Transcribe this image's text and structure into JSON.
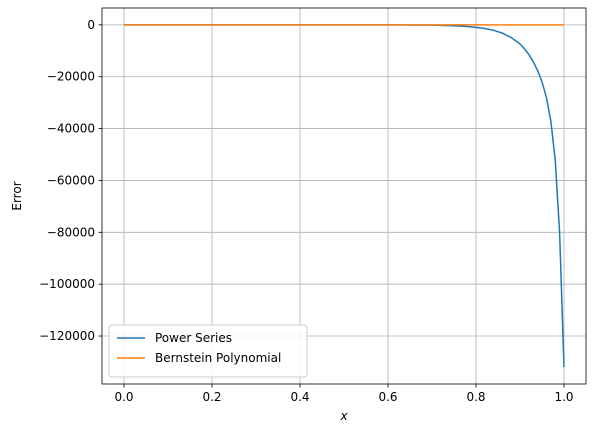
{
  "chart_data": {
    "type": "line",
    "title": "",
    "xlabel": "x",
    "ylabel": "Error",
    "xlim": [
      -0.05,
      1.05
    ],
    "ylim": [
      -138500,
      6500
    ],
    "xticks": [
      0.0,
      0.2,
      0.4,
      0.6,
      0.8,
      1.0
    ],
    "xtick_labels": [
      "0.0",
      "0.2",
      "0.4",
      "0.6",
      "0.8",
      "1.0"
    ],
    "yticks": [
      0,
      -20000,
      -40000,
      -60000,
      -80000,
      -100000,
      -120000
    ],
    "ytick_labels": [
      "0",
      "−20000",
      "−40000",
      "−60000",
      "−80000",
      "−100000",
      "−120000"
    ],
    "grid": true,
    "legend_position": "lower-left",
    "series": [
      {
        "name": "Power Series",
        "color": "#1f77b4",
        "x": [
          0.0,
          0.1,
          0.2,
          0.3,
          0.4,
          0.5,
          0.6,
          0.65,
          0.7,
          0.72,
          0.74,
          0.76,
          0.78,
          0.8,
          0.82,
          0.84,
          0.86,
          0.88,
          0.9,
          0.91,
          0.92,
          0.93,
          0.94,
          0.95,
          0.96,
          0.97,
          0.98,
          0.99,
          1.0
        ],
        "y": [
          0,
          0,
          0,
          0,
          0,
          0,
          -20,
          -50,
          -120,
          -180,
          -280,
          -420,
          -630,
          -950,
          -1400,
          -2100,
          -3200,
          -4900,
          -7400,
          -9200,
          -11400,
          -14200,
          -17600,
          -22000,
          -28000,
          -37000,
          -52000,
          -80000,
          -132000
        ]
      },
      {
        "name": "Bernstein Polynomial",
        "color": "#ff7f0e",
        "x": [
          0.0,
          0.25,
          0.5,
          0.75,
          1.0
        ],
        "y": [
          0,
          0,
          0,
          0,
          0
        ]
      }
    ]
  }
}
